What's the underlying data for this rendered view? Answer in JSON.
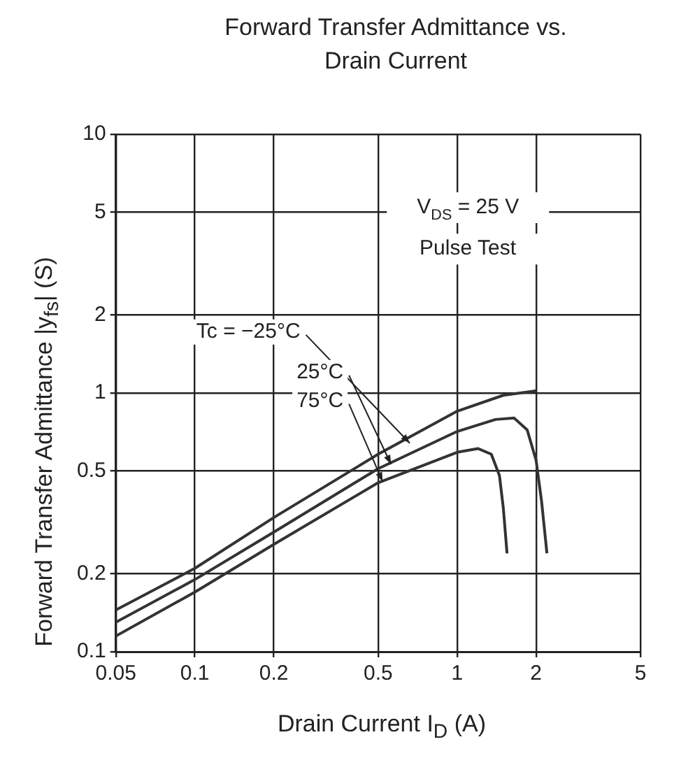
{
  "chart_data": {
    "type": "line",
    "title": "Forward Transfer Admittance vs. Drain Current",
    "xlabel": "Drain Current I$_{D}$ (A)",
    "ylabel": "Forward Transfer Admittance |y$_{fs}$| (S)",
    "log": "xy",
    "xlim": [
      0.05,
      5
    ],
    "ylim": [
      0.1,
      10
    ],
    "xticks": [
      0.05,
      0.1,
      0.2,
      0.5,
      1,
      2,
      5
    ],
    "yticks": [
      0.1,
      0.2,
      0.5,
      1,
      2,
      5,
      10
    ],
    "grid": true,
    "legend": false,
    "marker": "none",
    "line_style": "solid",
    "annotations": [
      "V$_{DS}$ = 25 V",
      "Pulse Test"
    ],
    "series": [
      {
        "name": "Tc = −25°C",
        "color": "#333333",
        "x": [
          0.05,
          0.1,
          0.2,
          0.5,
          1,
          1.5,
          2
        ],
        "values": [
          0.145,
          0.21,
          0.33,
          0.58,
          0.85,
          0.98,
          1.02
        ]
      },
      {
        "name": "25°C",
        "color": "#333333",
        "x": [
          0.05,
          0.1,
          0.2,
          0.5,
          1,
          1.4,
          1.65,
          1.85,
          2,
          2.1,
          2.2
        ],
        "values": [
          0.13,
          0.19,
          0.29,
          0.51,
          0.71,
          0.79,
          0.8,
          0.72,
          0.55,
          0.38,
          0.24
        ]
      },
      {
        "name": "75°C",
        "color": "#333333",
        "x": [
          0.05,
          0.1,
          0.2,
          0.5,
          1,
          1.2,
          1.35,
          1.45,
          1.5,
          1.55
        ],
        "values": [
          0.115,
          0.17,
          0.26,
          0.45,
          0.59,
          0.61,
          0.58,
          0.48,
          0.36,
          0.24
        ]
      }
    ]
  }
}
